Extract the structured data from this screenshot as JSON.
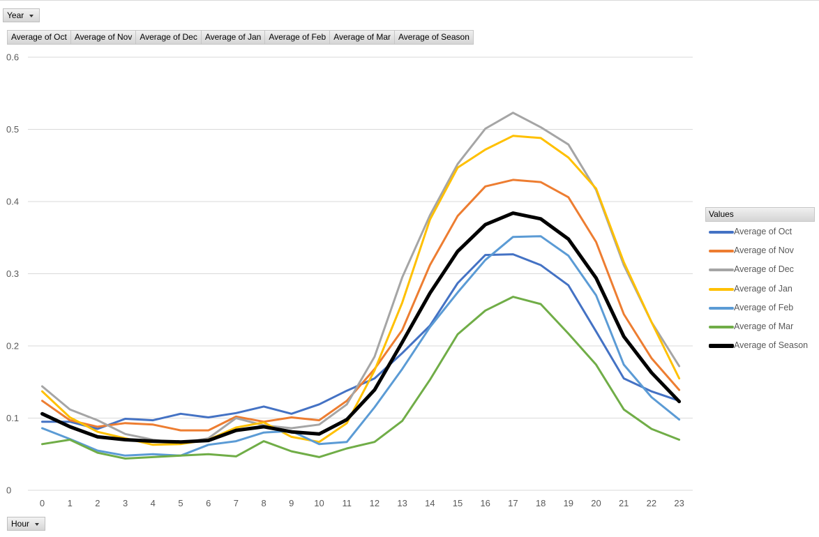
{
  "filters": {
    "year_label": "Year",
    "hour_label": "Hour"
  },
  "values_fields": [
    "Average of Oct",
    "Average of Nov",
    "Average of Dec",
    "Average of Jan",
    "Average of Feb",
    "Average of Mar",
    "Average of Season"
  ],
  "legend": {
    "title": "Values"
  },
  "chart_data": {
    "type": "line",
    "title": "",
    "xlabel": "",
    "ylabel": "",
    "ylim": [
      0,
      0.6
    ],
    "yticks": [
      0,
      0.1,
      0.2,
      0.3,
      0.4,
      0.5,
      0.6
    ],
    "grid": true,
    "legend_position": "right",
    "categories": [
      0,
      1,
      2,
      3,
      4,
      5,
      6,
      7,
      8,
      9,
      10,
      11,
      12,
      13,
      14,
      15,
      16,
      17,
      18,
      19,
      20,
      21,
      22,
      23
    ],
    "series": [
      {
        "name": "Average of Oct",
        "color": "#4472c4",
        "emphasis": false,
        "values": [
          0.095,
          0.095,
          0.085,
          0.099,
          0.097,
          0.106,
          0.101,
          0.107,
          0.116,
          0.106,
          0.119,
          0.138,
          0.155,
          0.19,
          0.228,
          0.287,
          0.326,
          0.327,
          0.312,
          0.284,
          0.22,
          0.155,
          0.137,
          0.124
        ]
      },
      {
        "name": "Average of Nov",
        "color": "#ed7d31",
        "emphasis": false,
        "values": [
          0.124,
          0.097,
          0.088,
          0.093,
          0.091,
          0.083,
          0.083,
          0.102,
          0.095,
          0.101,
          0.097,
          0.124,
          0.168,
          0.222,
          0.312,
          0.38,
          0.421,
          0.43,
          0.427,
          0.406,
          0.344,
          0.244,
          0.183,
          0.139
        ]
      },
      {
        "name": "Average of Dec",
        "color": "#a5a5a5",
        "emphasis": false,
        "values": [
          0.144,
          0.112,
          0.097,
          0.078,
          0.07,
          0.065,
          0.072,
          0.1,
          0.09,
          0.086,
          0.091,
          0.119,
          0.185,
          0.295,
          0.381,
          0.452,
          0.501,
          0.523,
          0.503,
          0.479,
          0.416,
          0.312,
          0.233,
          0.172
        ]
      },
      {
        "name": "Average of Jan",
        "color": "#ffc000",
        "emphasis": false,
        "values": [
          0.137,
          0.101,
          0.081,
          0.072,
          0.063,
          0.064,
          0.07,
          0.087,
          0.094,
          0.074,
          0.067,
          0.093,
          0.166,
          0.26,
          0.375,
          0.447,
          0.472,
          0.491,
          0.488,
          0.461,
          0.418,
          0.316,
          0.233,
          0.155
        ]
      },
      {
        "name": "Average of Feb",
        "color": "#5b9bd5",
        "emphasis": false,
        "values": [
          0.086,
          0.071,
          0.055,
          0.048,
          0.05,
          0.048,
          0.063,
          0.068,
          0.08,
          0.082,
          0.064,
          0.067,
          0.115,
          0.168,
          0.226,
          0.274,
          0.319,
          0.351,
          0.352,
          0.325,
          0.27,
          0.174,
          0.129,
          0.098
        ]
      },
      {
        "name": "Average of Mar",
        "color": "#70ad47",
        "emphasis": false,
        "values": [
          0.064,
          0.07,
          0.052,
          0.044,
          0.046,
          0.048,
          0.05,
          0.047,
          0.068,
          0.054,
          0.046,
          0.058,
          0.067,
          0.096,
          0.153,
          0.216,
          0.249,
          0.268,
          0.258,
          0.217,
          0.174,
          0.112,
          0.085,
          0.07
        ]
      },
      {
        "name": "Average of Season",
        "color": "#000000",
        "emphasis": true,
        "values": [
          0.106,
          0.088,
          0.074,
          0.07,
          0.068,
          0.067,
          0.069,
          0.083,
          0.088,
          0.081,
          0.078,
          0.098,
          0.139,
          0.205,
          0.273,
          0.331,
          0.368,
          0.384,
          0.376,
          0.348,
          0.294,
          0.213,
          0.163,
          0.123
        ]
      }
    ]
  }
}
